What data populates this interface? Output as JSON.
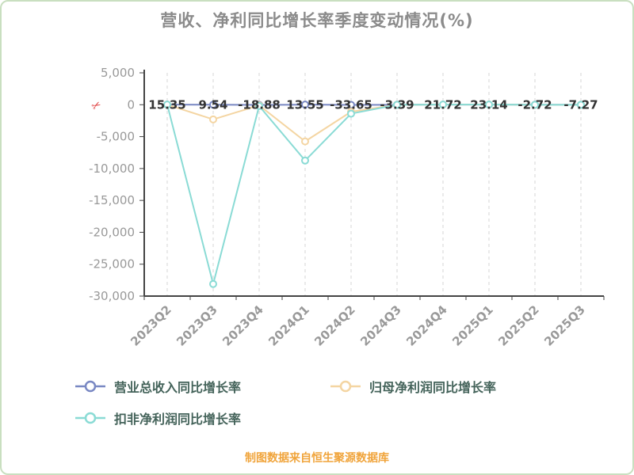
{
  "title": "营收、净利同比增长率季度变动情况(%)",
  "caption": "制图数据来自恒生聚源数据库",
  "icons": {
    "scissors": "✂"
  },
  "colors": {
    "background": "#ffffff",
    "page_border": "#c9dfc0",
    "axis": "#444444",
    "grid": "#d6d6d6",
    "tick_label": "#999999",
    "data_label": "#333333",
    "legend_text": "#44635a",
    "caption": "#f0a43b",
    "scissors": "#e04444"
  },
  "chart_data": {
    "type": "line",
    "title": "营收、净利同比增长率季度变动情况(%)",
    "categories": [
      "2023Q2",
      "2023Q3",
      "2023Q4",
      "2024Q1",
      "2024Q2",
      "2024Q3",
      "2024Q4",
      "2025Q1",
      "2025Q2",
      "2025Q3"
    ],
    "series": [
      {
        "name": "营业总收入同比增长率",
        "color": "#7988c3",
        "values": [
          15.35,
          9.54,
          -18.88,
          13.55,
          -33.65,
          -3.39,
          21.72,
          23.14,
          -2.72,
          -7.27
        ],
        "data_labels": true
      },
      {
        "name": "归母净利润同比增长率",
        "color": "#f4d5a2",
        "values": [
          10,
          -2300,
          -100,
          -5750,
          -1100,
          -10,
          15,
          20,
          -5,
          -10
        ],
        "estimated": true
      },
      {
        "name": "扣非净利润同比增长率",
        "color": "#8adbd5",
        "values": [
          15,
          -28100,
          -200,
          -8750,
          -1400,
          -15,
          18,
          22,
          -6,
          -12
        ],
        "estimated": true
      }
    ],
    "ylim": [
      -30000,
      5000
    ],
    "yticks": [
      5000,
      0,
      -5000,
      -10000,
      -15000,
      -20000,
      -25000,
      -30000
    ],
    "grid": "vertical-dashed",
    "legend_position": "bottom-left",
    "x_label_rotation": 45
  }
}
